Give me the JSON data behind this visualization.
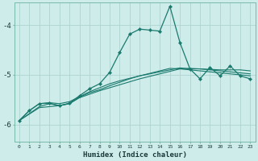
{
  "xlabel": "Humidex (Indice chaleur)",
  "background_color": "#ceecea",
  "grid_color": "#aed4d0",
  "line_color": "#1a7a6e",
  "xlim": [
    -0.5,
    23.5
  ],
  "ylim": [
    -6.35,
    -3.55
  ],
  "yticks": [
    -6,
    -5,
    -4
  ],
  "xticks": [
    0,
    1,
    2,
    3,
    4,
    5,
    6,
    7,
    8,
    9,
    10,
    11,
    12,
    13,
    14,
    15,
    16,
    17,
    18,
    19,
    20,
    21,
    22,
    23
  ],
  "series1": [
    [
      0,
      -5.92
    ],
    [
      1,
      -5.72
    ],
    [
      2,
      -5.58
    ],
    [
      3,
      -5.57
    ],
    [
      4,
      -5.62
    ],
    [
      5,
      -5.57
    ],
    [
      6,
      -5.42
    ],
    [
      7,
      -5.28
    ],
    [
      8,
      -5.18
    ],
    [
      9,
      -4.95
    ],
    [
      10,
      -4.55
    ],
    [
      11,
      -4.18
    ],
    [
      12,
      -4.08
    ],
    [
      13,
      -4.1
    ],
    [
      14,
      -4.12
    ],
    [
      15,
      -3.62
    ],
    [
      16,
      -4.35
    ],
    [
      17,
      -4.88
    ],
    [
      18,
      -5.08
    ],
    [
      19,
      -4.85
    ],
    [
      20,
      -5.02
    ],
    [
      21,
      -4.82
    ],
    [
      22,
      -5.02
    ],
    [
      23,
      -5.08
    ]
  ],
  "series2": [
    [
      0,
      -5.92
    ],
    [
      1,
      -5.72
    ],
    [
      2,
      -5.58
    ],
    [
      3,
      -5.56
    ],
    [
      4,
      -5.58
    ],
    [
      5,
      -5.54
    ],
    [
      6,
      -5.44
    ],
    [
      7,
      -5.34
    ],
    [
      8,
      -5.26
    ],
    [
      9,
      -5.18
    ],
    [
      10,
      -5.12
    ],
    [
      11,
      -5.07
    ],
    [
      12,
      -5.02
    ],
    [
      13,
      -4.97
    ],
    [
      14,
      -4.92
    ],
    [
      15,
      -4.87
    ],
    [
      16,
      -4.88
    ],
    [
      17,
      -4.9
    ],
    [
      18,
      -4.92
    ],
    [
      19,
      -4.94
    ],
    [
      20,
      -4.96
    ],
    [
      21,
      -4.98
    ],
    [
      22,
      -5.0
    ],
    [
      23,
      -5.02
    ]
  ],
  "series3": [
    [
      0,
      -5.92
    ],
    [
      2,
      -5.64
    ],
    [
      3,
      -5.58
    ],
    [
      4,
      -5.62
    ],
    [
      5,
      -5.58
    ],
    [
      6,
      -5.45
    ],
    [
      7,
      -5.36
    ],
    [
      8,
      -5.3
    ],
    [
      9,
      -5.22
    ],
    [
      10,
      -5.15
    ],
    [
      11,
      -5.08
    ],
    [
      12,
      -5.02
    ],
    [
      13,
      -4.98
    ],
    [
      14,
      -4.94
    ],
    [
      15,
      -4.9
    ],
    [
      16,
      -4.86
    ],
    [
      17,
      -4.88
    ],
    [
      18,
      -4.88
    ],
    [
      19,
      -4.9
    ],
    [
      20,
      -4.92
    ],
    [
      21,
      -4.94
    ],
    [
      22,
      -4.96
    ],
    [
      23,
      -4.98
    ]
  ],
  "series4": [
    [
      0,
      -5.92
    ],
    [
      2,
      -5.66
    ],
    [
      4,
      -5.62
    ],
    [
      5,
      -5.58
    ],
    [
      6,
      -5.46
    ],
    [
      8,
      -5.32
    ],
    [
      10,
      -5.2
    ],
    [
      12,
      -5.08
    ],
    [
      14,
      -4.98
    ],
    [
      16,
      -4.88
    ],
    [
      17,
      -4.87
    ],
    [
      18,
      -4.88
    ],
    [
      20,
      -4.9
    ],
    [
      22,
      -4.9
    ],
    [
      23,
      -4.92
    ]
  ]
}
